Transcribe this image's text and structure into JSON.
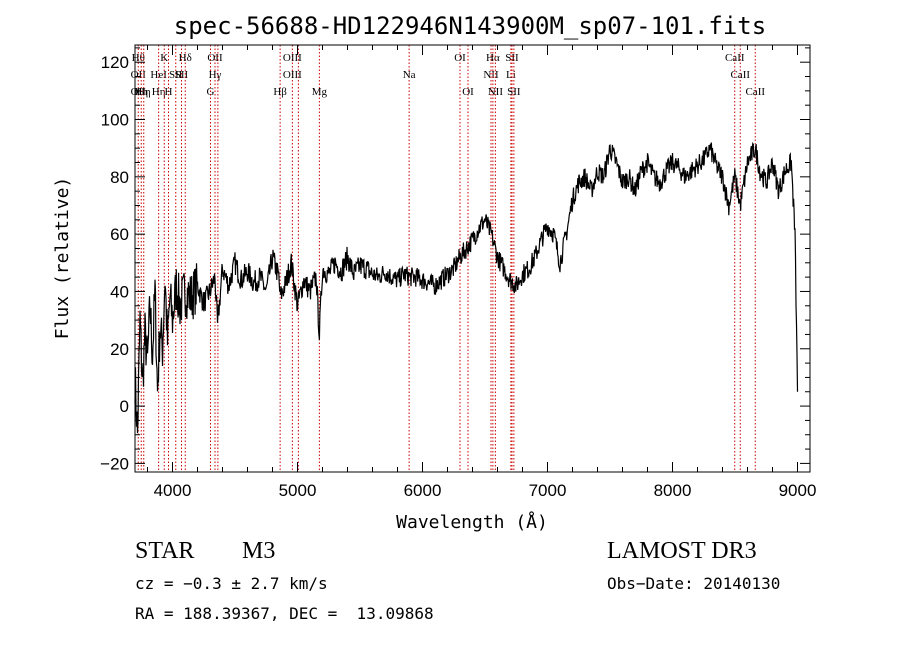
{
  "chart_data": {
    "type": "line",
    "title": "spec-56688-HD122946N143900M_sp07-101.fits",
    "xlabel": "Wavelength (Å)",
    "ylabel": "Flux (relative)",
    "xlim": [
      3700,
      9100
    ],
    "ylim": [
      -23,
      126
    ],
    "x_ticks": [
      4000,
      5000,
      6000,
      7000,
      8000,
      9000
    ],
    "y_ticks": [
      -20,
      0,
      20,
      40,
      60,
      80,
      100,
      120
    ],
    "x_tick_labels": [
      "4000",
      "5000",
      "6000",
      "7000",
      "8000",
      "9000"
    ],
    "y_tick_labels": [
      "−20",
      "0",
      "20",
      "40",
      "60",
      "80",
      "100",
      "120"
    ],
    "grid": false,
    "line_color": "#000000",
    "marker_color": "#cc0000",
    "series": [
      {
        "x": [
          3700,
          3720,
          3740,
          3760,
          3780,
          3800,
          3820,
          3840,
          3860,
          3880,
          3900,
          3920,
          3940,
          3960,
          3980,
          4000,
          4030,
          4060,
          4100,
          4150,
          4200,
          4250,
          4300,
          4340,
          4360,
          4400,
          4450,
          4500,
          4550,
          4600,
          4650,
          4700,
          4750,
          4800,
          4850,
          4861,
          4900,
          4950,
          5000,
          5050,
          5100,
          5150,
          5175,
          5200,
          5250,
          5300,
          5350,
          5400,
          5450,
          5500,
          5550,
          5600,
          5650,
          5700,
          5750,
          5800,
          5850,
          5900,
          5950,
          6000,
          6050,
          6100,
          6150,
          6200,
          6250,
          6300,
          6350,
          6400,
          6450,
          6500,
          6550,
          6563,
          6600,
          6650,
          6700,
          6750,
          6800,
          6850,
          6900,
          6950,
          7000,
          7050,
          7100,
          7150,
          7200,
          7250,
          7300,
          7350,
          7400,
          7450,
          7500,
          7550,
          7600,
          7650,
          7700,
          7750,
          7800,
          7850,
          7900,
          7950,
          8000,
          8050,
          8100,
          8150,
          8200,
          8250,
          8300,
          8350,
          8400,
          8450,
          8498,
          8542,
          8600,
          8662,
          8700,
          8750,
          8800,
          8850,
          8900,
          8950,
          8980,
          9000
        ],
        "y": [
          10,
          -10,
          30,
          8,
          25,
          15,
          35,
          18,
          40,
          5,
          28,
          20,
          45,
          22,
          38,
          30,
          42,
          35,
          40,
          38,
          42,
          36,
          40,
          45,
          28,
          48,
          42,
          50,
          44,
          47,
          43,
          45,
          40,
          52,
          45,
          38,
          42,
          50,
          35,
          44,
          40,
          45,
          25,
          48,
          46,
          50,
          47,
          52,
          46,
          49,
          48,
          46,
          45,
          47,
          45,
          44,
          46,
          45,
          45,
          44,
          43,
          42,
          44,
          46,
          48,
          52,
          55,
          58,
          62,
          65,
          60,
          58,
          52,
          48,
          44,
          42,
          46,
          48,
          52,
          58,
          63,
          60,
          50,
          60,
          72,
          78,
          80,
          75,
          82,
          80,
          90,
          85,
          78,
          80,
          75,
          82,
          85,
          80,
          78,
          82,
          85,
          83,
          80,
          82,
          84,
          86,
          90,
          84,
          80,
          70,
          80,
          70,
          85,
          90,
          82,
          78,
          85,
          75,
          82,
          85,
          60,
          5
        ]
      }
    ],
    "line_markers": [
      {
        "x": 3726,
        "labels": [
          "Hθ",
          "OII",
          "OII"
        ]
      },
      {
        "x": 3750,
        "labels": [
          "",
          "",
          "Hη"
        ]
      },
      {
        "x": 3770,
        "labels": [
          "",
          "",
          "Hη"
        ]
      },
      {
        "x": 3889,
        "labels": [
          "",
          "HeI",
          "Hη"
        ]
      },
      {
        "x": 3934,
        "labels": [
          "K",
          "",
          ""
        ]
      },
      {
        "x": 3968,
        "labels": [
          "",
          "",
          "H"
        ]
      },
      {
        "x": 4026,
        "labels": [
          "",
          "SII",
          ""
        ]
      },
      {
        "x": 4072,
        "labels": [
          "",
          "SII",
          ""
        ]
      },
      {
        "x": 4102,
        "labels": [
          "Hδ",
          "",
          ""
        ]
      },
      {
        "x": 4304,
        "labels": [
          "",
          "",
          "G"
        ]
      },
      {
        "x": 4340,
        "labels": [
          "OII",
          "Hγ",
          ""
        ]
      },
      {
        "x": 4363,
        "labels": [
          "",
          "",
          ""
        ]
      },
      {
        "x": 4861,
        "labels": [
          "",
          "",
          "Hβ"
        ]
      },
      {
        "x": 4959,
        "labels": [
          "OIII",
          "OIII",
          ""
        ]
      },
      {
        "x": 5007,
        "labels": [
          "",
          "",
          ""
        ]
      },
      {
        "x": 5175,
        "labels": [
          "",
          "",
          "Mg"
        ]
      },
      {
        "x": 5893,
        "labels": [
          "",
          "Na",
          ""
        ]
      },
      {
        "x": 6300,
        "labels": [
          "OI",
          "",
          ""
        ]
      },
      {
        "x": 6364,
        "labels": [
          "",
          "",
          "OI"
        ]
      },
      {
        "x": 6548,
        "labels": [
          "",
          "NII",
          ""
        ]
      },
      {
        "x": 6563,
        "labels": [
          "Hα",
          "",
          ""
        ]
      },
      {
        "x": 6583,
        "labels": [
          "",
          "",
          "NII"
        ]
      },
      {
        "x": 6707,
        "labels": [
          "",
          "Li",
          ""
        ]
      },
      {
        "x": 6716,
        "labels": [
          "SII",
          "",
          ""
        ]
      },
      {
        "x": 6731,
        "labels": [
          "",
          "",
          "SII"
        ]
      },
      {
        "x": 8498,
        "labels": [
          "CaII",
          "",
          ""
        ]
      },
      {
        "x": 8542,
        "labels": [
          "",
          "CaII",
          ""
        ]
      },
      {
        "x": 8662,
        "labels": [
          "",
          "",
          "CaII"
        ]
      }
    ]
  },
  "info": {
    "class_label": "STAR",
    "subclass": "M3",
    "survey": "LAMOST DR3",
    "cz": "cz = −0.3 ± 2.7 km/s",
    "obs_date": "Obs−Date: 20140130",
    "coords": "RA = 188.39367, DEC =  13.09868"
  }
}
